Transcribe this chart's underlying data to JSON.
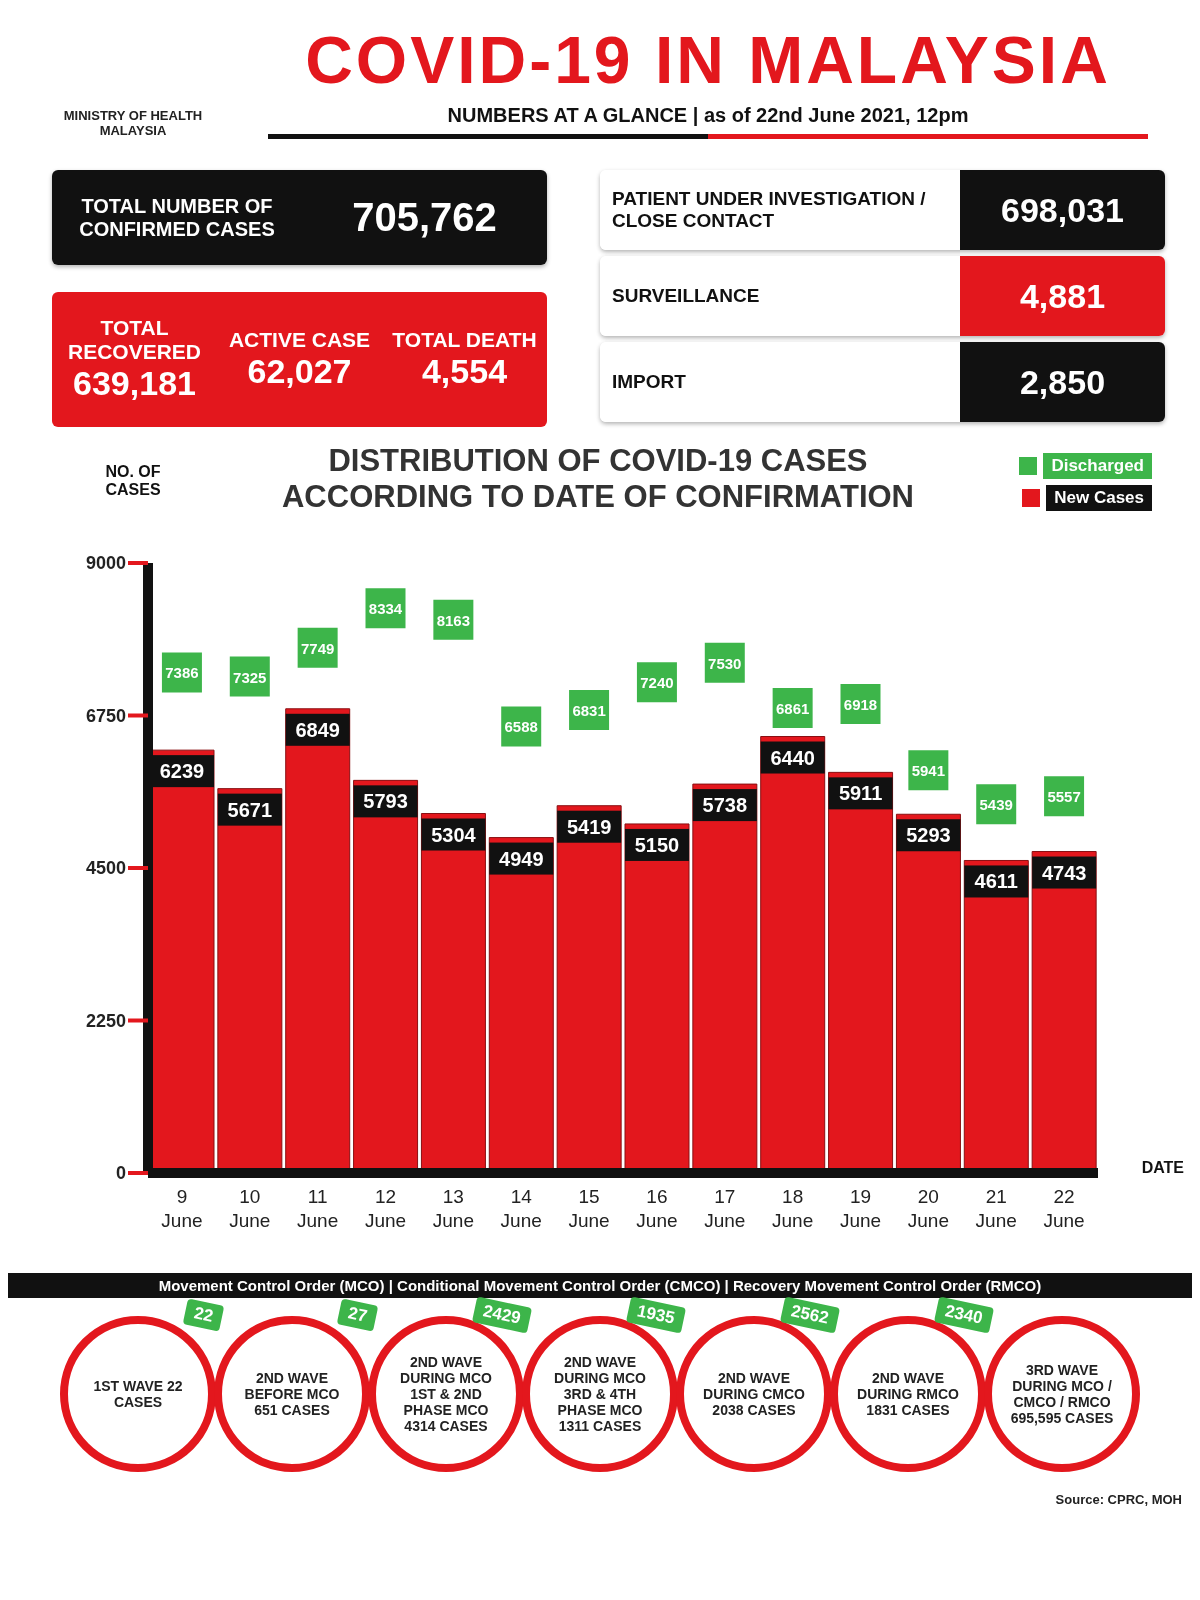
{
  "chart_data": [
    {
      "type": "other",
      "title": "COVID-19 IN MALAYSIA",
      "subtitle": "NUMBERS AT A GLANCE | as of 22nd June 2021, 12pm",
      "annotations": [
        "MINISTRY OF HEALTH MALAYSIA"
      ],
      "categories": [
        "TOTAL NUMBER OF CONFIRMED CASES",
        "TOTAL RECOVERED",
        "ACTIVE CASE",
        "TOTAL DEATH",
        "PATIENT UNDER INVESTIGATION / CLOSE CONTACT",
        "SURVEILLANCE",
        "IMPORT"
      ],
      "value_labels": [
        "705,762",
        "639,181",
        "62,027",
        "4,554",
        "698,031",
        "4,881",
        "2,850"
      ]
    },
    {
      "type": "bar",
      "title": "DISTRIBUTION OF COVID-19 CASES ACCORDING TO DATE OF CONFIRMATION",
      "xlabel": "DATE",
      "ylabel": "NO. OF CASES",
      "categories": [
        "9 June",
        "10 June",
        "11 June",
        "12 June",
        "13 June",
        "14 June",
        "15 June",
        "16 June",
        "17 June",
        "18 June",
        "19 June",
        "20 June",
        "21 June",
        "22 June"
      ],
      "series": [
        {
          "name": "New Cases",
          "type": "bar",
          "color": "#e3171d",
          "values": [
            6239,
            5671,
            6849,
            5793,
            5304,
            4949,
            5419,
            5150,
            5738,
            6440,
            5911,
            5293,
            4611,
            4743
          ]
        },
        {
          "name": "Discharged",
          "type": "scatter",
          "color": "#3db54a",
          "values": [
            7386,
            7325,
            7749,
            8334,
            8163,
            6588,
            6831,
            7240,
            7530,
            6861,
            6918,
            5941,
            5439,
            5557
          ]
        }
      ],
      "ylim": [
        0,
        9000
      ],
      "yticks": [
        0,
        2250,
        4500,
        6750,
        9000
      ],
      "data_labels": true,
      "legend": "top right",
      "marker": "square"
    },
    {
      "type": "other",
      "title": "Movement Control Order (MCO) | Conditional Movement Control Order (CMCO) | Recovery Movement Control Order (RMCO)",
      "categories": [
        "1ST WAVE 22 CASES",
        "2ND WAVE BEFORE MCO 651 CASES",
        "2ND WAVE DURING MCO 1ST & 2ND PHASE MCO 4314 CASES",
        "2ND WAVE DURING MCO 3RD & 4TH PHASE MCO 1311 CASES",
        "2ND WAVE DURING CMCO 2038 CASES",
        "2ND WAVE DURING RMCO 1831 CASES",
        "3RD WAVE DURING MCO / CMCO / RMCO 695,595 CASES"
      ],
      "values": [
        22,
        27,
        2429,
        1935,
        2562,
        2340,
        null
      ],
      "data_labels": true,
      "annotations": [
        "Source: CPRC, MOH"
      ]
    }
  ]
}
